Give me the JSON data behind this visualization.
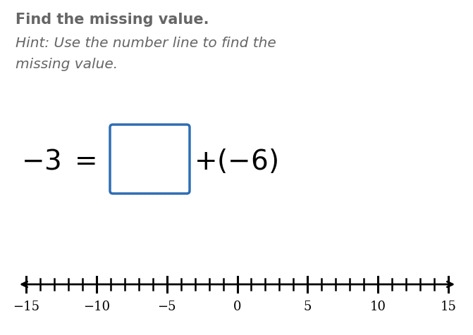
{
  "title_bold": "Find the missing value.",
  "hint_line1": "Hint: Use the number line to find the",
  "hint_line2": "missing value.",
  "box_color": "#2e6db4",
  "box_facecolor": "white",
  "title_color": "#666666",
  "equation_color": "#000000",
  "number_line_min": -15,
  "number_line_max": 15,
  "number_line_labels": [
    -15,
    -10,
    -5,
    0,
    5,
    10,
    15
  ],
  "tick_interval": 1,
  "background_color": "#ffffff",
  "figsize": [
    6.71,
    4.77
  ],
  "dpi": 100
}
